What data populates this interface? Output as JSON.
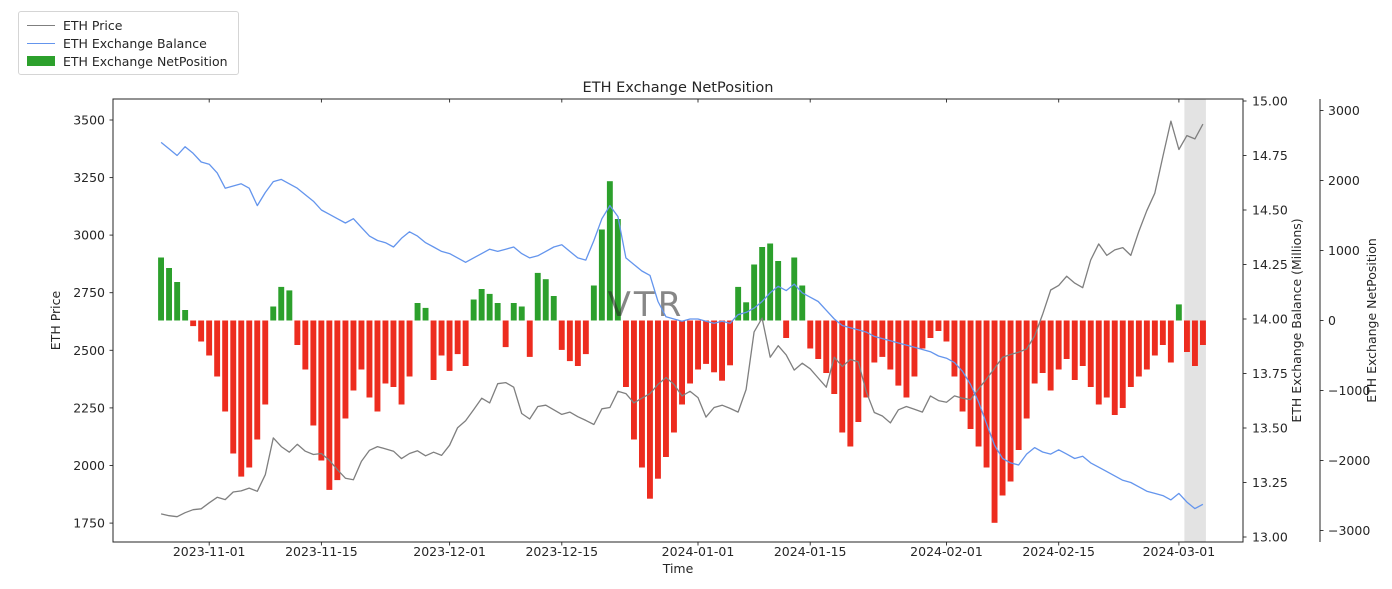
{
  "figure": {
    "title": "ETH Exchange NetPosition",
    "watermark": "VTR"
  },
  "legend": {
    "items": [
      {
        "label": "ETH Price",
        "type": "line",
        "color": "#7f7f7f"
      },
      {
        "label": "ETH Exchange Balance",
        "type": "line",
        "color": "#6495ed"
      },
      {
        "label": "ETH Exchange NetPosition",
        "type": "patch",
        "color": "#2ca02c"
      }
    ]
  },
  "axes": {
    "x": {
      "label": "Time",
      "tick_labels": [
        "2023-11-01",
        "2023-11-15",
        "2023-12-01",
        "2023-12-15",
        "2024-01-01",
        "2024-01-15",
        "2024-02-01",
        "2024-02-15",
        "2024-03-01"
      ]
    },
    "left": {
      "label": "ETH Price",
      "tick_labels": [
        "1750",
        "2000",
        "2250",
        "2500",
        "2750",
        "3000",
        "3250",
        "3500"
      ]
    },
    "right_balance": {
      "label": "ETH Exchange Balance (Millions)",
      "tick_labels": [
        "13.00",
        "13.25",
        "13.50",
        "13.75",
        "14.00",
        "14.25",
        "14.50",
        "14.75",
        "15.00"
      ]
    },
    "right_netposition": {
      "label": "ETH Exchange NetPosition",
      "tick_labels": [
        "−3000",
        "−2000",
        "−1000",
        "0",
        "1000",
        "2000",
        "3000"
      ]
    }
  },
  "chart_data": {
    "type": "mixed",
    "title": "ETH Exchange NetPosition",
    "xlabel": "Time",
    "frequency": "daily",
    "start_date": "2023-10-26",
    "end_date": "2024-03-04",
    "x_range": [
      "2023-10-20",
      "2024-03-09"
    ],
    "price_axis": {
      "label": "ETH Price",
      "lim": [
        1668,
        3591
      ]
    },
    "balance_axis": {
      "label": "ETH Exchange Balance (Millions)",
      "lim": [
        12.977,
        15.009
      ]
    },
    "netposition_axis": {
      "label": "ETH Exchange NetPosition",
      "lim": [
        -3164,
        3164
      ]
    },
    "highlight_band": {
      "from": "2024-03-02",
      "to": "2024-03-04",
      "color": "#e0e0e0"
    },
    "series": [
      {
        "name": "ETH Price",
        "type": "line",
        "axis": "price",
        "color": "#7f7f7f",
        "values": [
          1790,
          1782,
          1778,
          1795,
          1808,
          1812,
          1838,
          1862,
          1852,
          1885,
          1890,
          1902,
          1888,
          1960,
          2120,
          2082,
          2058,
          2092,
          2062,
          2048,
          2052,
          2022,
          1982,
          1945,
          1938,
          2018,
          2066,
          2082,
          2072,
          2062,
          2030,
          2052,
          2064,
          2042,
          2058,
          2044,
          2088,
          2164,
          2194,
          2242,
          2292,
          2272,
          2355,
          2360,
          2340,
          2226,
          2202,
          2256,
          2262,
          2242,
          2222,
          2232,
          2212,
          2196,
          2178,
          2246,
          2252,
          2322,
          2312,
          2272,
          2292,
          2312,
          2352,
          2382,
          2352,
          2302,
          2322,
          2295,
          2210,
          2252,
          2262,
          2248,
          2232,
          2330,
          2580,
          2640,
          2470,
          2520,
          2480,
          2414,
          2444,
          2420,
          2380,
          2340,
          2470,
          2430,
          2460,
          2450,
          2320,
          2230,
          2215,
          2185,
          2242,
          2256,
          2244,
          2232,
          2302,
          2282,
          2275,
          2302,
          2292,
          2286,
          2332,
          2376,
          2422,
          2470,
          2482,
          2492,
          2506,
          2562,
          2656,
          2762,
          2782,
          2822,
          2792,
          2772,
          2892,
          2962,
          2912,
          2936,
          2946,
          2912,
          3016,
          3106,
          3182,
          3342,
          3495,
          3372,
          3432,
          3418,
          3482
        ]
      },
      {
        "name": "ETH Exchange Balance",
        "type": "line",
        "axis": "balance",
        "color": "#6495ed",
        "values": [
          14.81,
          14.78,
          14.75,
          14.79,
          14.76,
          14.72,
          14.71,
          14.67,
          14.6,
          14.61,
          14.62,
          14.6,
          14.52,
          14.58,
          14.63,
          14.64,
          14.62,
          14.6,
          14.57,
          14.54,
          14.5,
          14.48,
          14.46,
          14.44,
          14.46,
          14.42,
          14.38,
          14.36,
          14.35,
          14.33,
          14.37,
          14.4,
          14.38,
          14.35,
          14.33,
          14.31,
          14.3,
          14.28,
          14.26,
          14.28,
          14.3,
          14.32,
          14.31,
          14.32,
          14.33,
          14.3,
          14.28,
          14.29,
          14.31,
          14.33,
          14.34,
          14.31,
          14.28,
          14.27,
          14.36,
          14.46,
          14.52,
          14.47,
          14.28,
          14.25,
          14.22,
          14.2,
          14.08,
          14.01,
          14.0,
          13.99,
          14.0,
          14.0,
          13.99,
          13.98,
          13.99,
          13.98,
          14.02,
          14.03,
          14.05,
          14.08,
          14.12,
          14.15,
          14.13,
          14.16,
          14.12,
          14.1,
          14.08,
          14.04,
          14.0,
          13.97,
          13.96,
          13.95,
          13.94,
          13.92,
          13.91,
          13.9,
          13.89,
          13.88,
          13.87,
          13.86,
          13.85,
          13.83,
          13.82,
          13.8,
          13.76,
          13.7,
          13.62,
          13.52,
          13.42,
          13.36,
          13.34,
          13.33,
          13.38,
          13.41,
          13.39,
          13.38,
          13.4,
          13.38,
          13.36,
          13.37,
          13.34,
          13.32,
          13.3,
          13.28,
          13.26,
          13.25,
          13.23,
          13.21,
          13.2,
          13.19,
          13.17,
          13.2,
          13.16,
          13.13,
          13.15
        ]
      },
      {
        "name": "ETH Exchange NetPosition",
        "type": "bar",
        "axis": "netposition",
        "positive_color": "#2ca02c",
        "negative_color": "#ed2c1f",
        "values": [
          900,
          750,
          550,
          150,
          -80,
          -300,
          -500,
          -800,
          -1300,
          -1900,
          -2230,
          -2100,
          -1700,
          -1200,
          200,
          480,
          430,
          -350,
          -700,
          -1500,
          -2000,
          -2420,
          -2280,
          -1400,
          -1000,
          -700,
          -1100,
          -1300,
          -900,
          -950,
          -1200,
          -800,
          250,
          180,
          -850,
          -500,
          -720,
          -480,
          -650,
          300,
          450,
          380,
          250,
          -380,
          250,
          200,
          -520,
          680,
          590,
          350,
          -420,
          -580,
          -650,
          -480,
          500,
          1300,
          1990,
          1450,
          -950,
          -1700,
          -2100,
          -2545,
          -2260,
          -1950,
          -1600,
          -1200,
          -900,
          -700,
          -620,
          -740,
          -860,
          -640,
          480,
          260,
          800,
          1050,
          1100,
          850,
          -250,
          900,
          500,
          -400,
          -550,
          -750,
          -1050,
          -1600,
          -1800,
          -1450,
          -1100,
          -600,
          -520,
          -700,
          -930,
          -1100,
          -800,
          -400,
          -250,
          -150,
          -300,
          -800,
          -1300,
          -1550,
          -1800,
          -2100,
          -2890,
          -2500,
          -2300,
          -1850,
          -1400,
          -900,
          -750,
          -1000,
          -700,
          -550,
          -850,
          -650,
          -950,
          -1200,
          -1100,
          -1350,
          -1250,
          -950,
          -800,
          -700,
          -500,
          -350,
          -600,
          230,
          -450,
          -650,
          -350
        ]
      }
    ],
    "legend_position": "upper-left-outside",
    "grid": false
  }
}
